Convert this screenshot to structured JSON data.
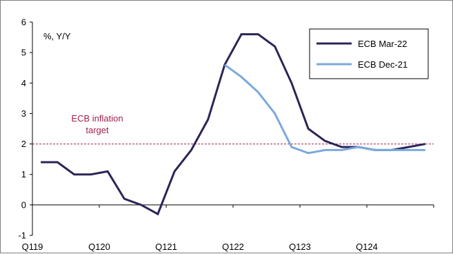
{
  "chart_data": {
    "type": "line",
    "unit_label": "%, Y/Y",
    "x": [
      "Q119",
      "Q219",
      "Q319",
      "Q419",
      "Q120",
      "Q220",
      "Q320",
      "Q420",
      "Q121",
      "Q221",
      "Q321",
      "Q421",
      "Q122",
      "Q222",
      "Q322",
      "Q422",
      "Q123",
      "Q223",
      "Q323",
      "Q423",
      "Q124",
      "Q224",
      "Q324",
      "Q424"
    ],
    "x_tick_labels": [
      "Q119",
      "Q120",
      "Q121",
      "Q122",
      "Q123",
      "Q124"
    ],
    "ylim": [
      -1,
      6
    ],
    "y_ticks": [
      -1,
      0,
      1,
      2,
      3,
      4,
      5,
      6
    ],
    "grid": false,
    "legend_position": "top-right",
    "series": [
      {
        "name": "ECB Mar-22",
        "color": "#2a2556",
        "values": [
          1.4,
          1.4,
          1.0,
          1.0,
          1.1,
          0.2,
          0.0,
          -0.3,
          1.1,
          1.8,
          2.8,
          4.6,
          5.6,
          5.6,
          5.2,
          4.0,
          2.5,
          2.1,
          1.9,
          1.9,
          1.8,
          1.8,
          1.9,
          2.0
        ]
      },
      {
        "name": "ECB Dec-21",
        "color": "#7aa9dc",
        "values": [
          null,
          null,
          null,
          null,
          null,
          null,
          null,
          null,
          null,
          null,
          null,
          4.6,
          4.2,
          3.7,
          3.0,
          1.9,
          1.7,
          1.8,
          1.8,
          1.9,
          1.8,
          1.8,
          1.8,
          1.8
        ]
      }
    ],
    "reference_line": {
      "value": 2,
      "color": "#a0204e",
      "label_line1": "ECB inflation",
      "label_line2": "target"
    }
  }
}
